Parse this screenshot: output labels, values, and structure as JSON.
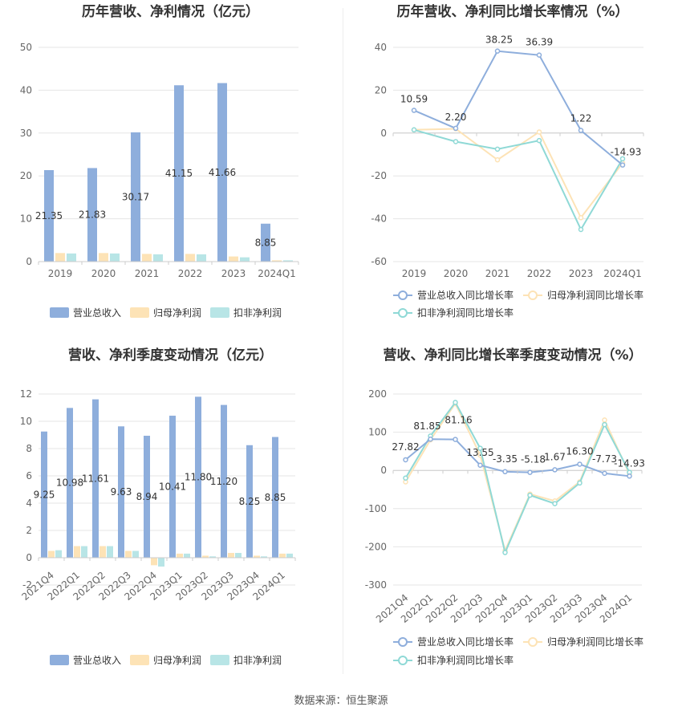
{
  "source_label": "数据来源：恒生聚源",
  "colors": {
    "revenue": "#8eaedc",
    "net_parent": "#fde3b6",
    "net_deducted": "#b8e5e6",
    "line_revenue": "#8eaedc",
    "line_net_parent": "#fde3b6",
    "line_net_deducted": "#8fd9d6"
  },
  "chart_data": [
    {
      "id": "annual-bar",
      "type": "bar",
      "title": "历年营收、净利情况（亿元）",
      "categories": [
        "2019",
        "2020",
        "2021",
        "2022",
        "2023",
        "2024Q1"
      ],
      "ylim": [
        0,
        50
      ],
      "yticks": [
        0,
        10,
        20,
        30,
        40,
        50
      ],
      "series": [
        {
          "name": "营业总收入",
          "values": [
            21.35,
            21.83,
            30.17,
            41.15,
            41.66,
            8.85
          ],
          "labels": [
            "21.35",
            "21.83",
            "30.17",
            "41.15",
            "41.66",
            "8.85"
          ]
        },
        {
          "name": "归母净利润",
          "values": [
            2.0,
            2.0,
            1.8,
            1.8,
            1.2,
            0.3
          ]
        },
        {
          "name": "扣非净利润",
          "values": [
            1.9,
            1.9,
            1.7,
            1.7,
            1.0,
            0.3
          ]
        }
      ],
      "legend": "bottom"
    },
    {
      "id": "annual-line",
      "type": "line",
      "title": "历年营收、净利同比增长率情况（%）",
      "categories": [
        "2019",
        "2020",
        "2021",
        "2022",
        "2023",
        "2024Q1"
      ],
      "ylim": [
        -60,
        40
      ],
      "yticks": [
        -60,
        -40,
        -20,
        0,
        20,
        40
      ],
      "series": [
        {
          "name": "营业总收入同比增长率",
          "values": [
            10.59,
            2.2,
            38.25,
            36.39,
            1.22,
            -14.93
          ],
          "labels": [
            "10.59",
            "2.20",
            "38.25",
            "36.39",
            "1.22",
            "-14.93"
          ]
        },
        {
          "name": "归母净利润同比增长率",
          "values": [
            1.5,
            2.0,
            -12.5,
            0.5,
            -39.5,
            -14.0
          ]
        },
        {
          "name": "扣非净利润同比增长率",
          "values": [
            1.5,
            -4.0,
            -7.5,
            -3.5,
            -45.0,
            -12.0
          ]
        }
      ],
      "legend": "bottom"
    },
    {
      "id": "quarterly-bar",
      "type": "bar",
      "title": "营收、净利季度变动情况（亿元）",
      "categories": [
        "2021Q4",
        "2022Q1",
        "2022Q2",
        "2022Q3",
        "2022Q4",
        "2023Q1",
        "2023Q2",
        "2023Q3",
        "2023Q4",
        "2024Q1"
      ],
      "ylim": [
        -2,
        12
      ],
      "yticks": [
        -2,
        0,
        2,
        4,
        6,
        8,
        10,
        12
      ],
      "series": [
        {
          "name": "营业总收入",
          "values": [
            9.25,
            10.98,
            11.61,
            9.63,
            8.94,
            10.41,
            11.8,
            11.2,
            8.25,
            8.85
          ],
          "labels": [
            "9.25",
            "10.98",
            "11.61",
            "9.63",
            "8.94",
            "10.41",
            "11.80",
            "11.20",
            "8.25",
            "8.85"
          ]
        },
        {
          "name": "归母净利润",
          "values": [
            0.5,
            0.85,
            0.85,
            0.5,
            -0.55,
            0.3,
            0.15,
            0.35,
            0.15,
            0.3
          ]
        },
        {
          "name": "扣非净利润",
          "values": [
            0.55,
            0.85,
            0.85,
            0.5,
            -0.65,
            0.3,
            0.1,
            0.35,
            0.1,
            0.3
          ]
        }
      ],
      "legend": "bottom"
    },
    {
      "id": "quarterly-line",
      "type": "line",
      "title": "营收、净利同比增长率季度变动情况（%）",
      "categories": [
        "2021Q4",
        "2022Q1",
        "2022Q2",
        "2022Q3",
        "2022Q4",
        "2023Q1",
        "2023Q2",
        "2023Q3",
        "2023Q4",
        "2024Q1"
      ],
      "ylim": [
        -300,
        200
      ],
      "yticks": [
        -300,
        -200,
        -100,
        0,
        100,
        200
      ],
      "series": [
        {
          "name": "营业总收入同比增长率",
          "values": [
            27.82,
            81.85,
            81.16,
            13.55,
            -3.35,
            -5.18,
            1.67,
            16.3,
            -7.73,
            -14.93
          ],
          "labels": [
            "27.82",
            "81.85",
            "81.16",
            "13.55",
            "-3.35",
            "-5.18",
            "1.67",
            "16.30",
            "-7.73",
            "-14.93"
          ]
        },
        {
          "name": "归母净利润同比增长率",
          "values": [
            -30,
            80,
            175,
            40,
            -210,
            -62,
            -80,
            -30,
            132,
            -10
          ]
        },
        {
          "name": "扣非净利润同比增长率",
          "values": [
            -20,
            90,
            178,
            58,
            -215,
            -65,
            -87,
            -33,
            120,
            -5
          ]
        }
      ],
      "legend": "bottom"
    }
  ]
}
